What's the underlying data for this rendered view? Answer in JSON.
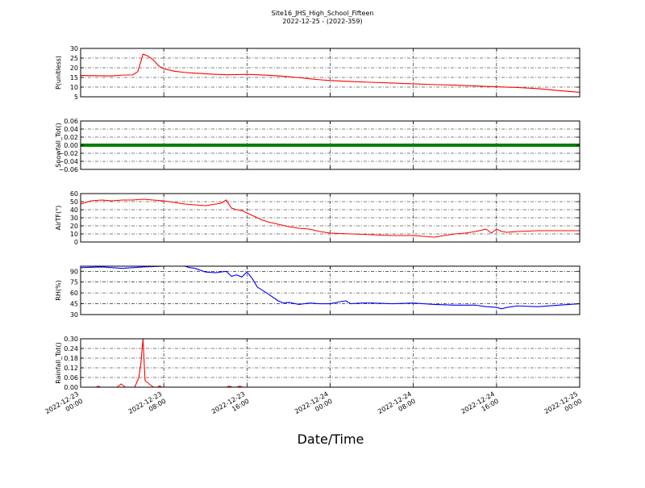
{
  "chart_data": {
    "type": "line",
    "title": "Site16_JHS_High_School_Fifteen",
    "subtitle": "2022-12-25 - (2022-359)",
    "xlabel": "Date/Time",
    "x_ticks": [
      [
        "2022-12-23",
        "00:00"
      ],
      [
        "2022-12-23",
        "08:00"
      ],
      [
        "2022-12-23",
        "16:00"
      ],
      [
        "2022-12-24",
        "00:00"
      ],
      [
        "2022-12-24",
        "08:00"
      ],
      [
        "2022-12-24",
        "16:00"
      ],
      [
        "2022-12-25",
        "00:00"
      ]
    ],
    "xlim_hours": [
      0,
      48
    ],
    "grid": true,
    "panels": [
      {
        "ylabel": "P(unitless)",
        "ylim": [
          5,
          30
        ],
        "yticks": [
          "5",
          "10",
          "15",
          "20",
          "25",
          "30"
        ],
        "series": [
          {
            "color": "#ff0000",
            "x": [
              0,
              3,
              4,
              5,
              5.5,
              6,
              6.5,
              7,
              7.5,
              8,
              9,
              10,
              11,
              12,
              13,
              14,
              15,
              16,
              17,
              18,
              19,
              20,
              21,
              22,
              23,
              24,
              26,
              28,
              30,
              32,
              34,
              36,
              38,
              40,
              42,
              44,
              46,
              48
            ],
            "y": [
              16,
              15.8,
              16.2,
              16.3,
              18,
              27,
              26,
              24,
              21,
              19.5,
              18.2,
              17.6,
              17.2,
              16.9,
              16.6,
              16.4,
              16.5,
              16.6,
              16.4,
              16.1,
              15.8,
              15.4,
              14.9,
              14.3,
              13.8,
              13.4,
              12.9,
              12.5,
              12.1,
              11.7,
              11.3,
              11.0,
              10.6,
              10.2,
              9.8,
              9.2,
              8.2,
              7.3
            ]
          }
        ]
      },
      {
        "ylabel": "Snowfall_Tot()",
        "ylim": [
          -0.06,
          0.06
        ],
        "yticks": [
          "−0.06",
          "−0.04",
          "−0.02",
          "0.00",
          "0.02",
          "0.04",
          "0.06"
        ],
        "series": [
          {
            "color": "#008000",
            "constant": 0,
            "style": "thick",
            "x": [
              0,
              48
            ],
            "y": [
              0,
              0
            ]
          }
        ]
      },
      {
        "ylabel": "AirTF(°)",
        "ylim": [
          0,
          60
        ],
        "yticks": [
          "0",
          "10",
          "20",
          "30",
          "40",
          "50",
          "60"
        ],
        "series": [
          {
            "color": "#ff0000",
            "x": [
              0,
              1,
              2,
              3,
              4,
              5,
              6,
              7,
              8,
              9,
              10,
              11,
              12,
              13,
              13.5,
              14,
              14.5,
              15,
              15.5,
              16,
              17,
              17.5,
              18,
              19,
              20,
              21,
              22,
              23,
              24,
              26,
              28,
              30,
              32,
              33,
              34,
              35,
              36,
              37,
              38,
              39,
              39.5,
              40,
              40.5,
              41,
              42,
              44,
              46,
              48
            ],
            "y": [
              47,
              51,
              52,
              51,
              52,
              52,
              53,
              52,
              51,
              49,
              47,
              46,
              45,
              47,
              48,
              52,
              42,
              40,
              39,
              36,
              30,
              27,
              25,
              22,
              19,
              17,
              16,
              13,
              11,
              10,
              9,
              8,
              8,
              7,
              6,
              8,
              10,
              11,
              13,
              16,
              11,
              16,
              13,
              12,
              13,
              14,
              14,
              14
            ]
          }
        ]
      },
      {
        "ylabel": "RH(%)",
        "ylim": [
          30,
          97
        ],
        "yticks": [
          "30",
          "45",
          "60",
          "75",
          "90"
        ],
        "series": [
          {
            "color": "#0000ff",
            "x": [
              0,
              2,
              4,
              6,
              8,
              10,
              10.5,
              11,
              12,
              13,
              14,
              14.5,
              15,
              15.5,
              16,
              16.5,
              17,
              18,
              19,
              19.5,
              20,
              21,
              22,
              23,
              24,
              25,
              25.5,
              26,
              27,
              28,
              30,
              32,
              34,
              36,
              38,
              39,
              40,
              40.5,
              41,
              42,
              44,
              46,
              48
            ],
            "y": [
              95,
              96,
              94,
              96,
              97,
              97,
              95,
              94,
              89,
              88,
              90,
              83,
              85,
              82,
              89,
              80,
              68,
              59,
              49,
              46,
              47,
              44,
              46,
              45,
              45,
              48,
              49,
              45,
              46,
              46,
              45,
              46,
              44,
              43,
              43,
              41,
              40,
              38,
              40,
              42,
              41,
              43,
              45
            ]
          }
        ]
      },
      {
        "ylabel": "Rainfall_Tot()",
        "ylim": [
          0,
          0.3
        ],
        "yticks": [
          "0.00",
          "0.06",
          "0.12",
          "0.18",
          "0.24",
          "0.30"
        ],
        "series": [
          {
            "color": "#ff0000",
            "x": [
              0,
              1.5,
              1.7,
              1.9,
              3.5,
              3.9,
              4.3,
              4.7,
              5.2,
              5.6,
              5.8,
              6.0,
              6.2,
              6.6,
              7.0,
              7.4,
              7.6,
              7.8,
              14,
              14.3,
              14.6,
              15,
              15.3,
              15.6,
              48
            ],
            "y": [
              0,
              0,
              0.006,
              0,
              0,
              0.02,
              0,
              0,
              0,
              0.06,
              0.15,
              0.3,
              0.04,
              0.02,
              0,
              0,
              0.008,
              0,
              0,
              0.006,
              0,
              0,
              0.006,
              0,
              0
            ]
          }
        ]
      }
    ]
  }
}
